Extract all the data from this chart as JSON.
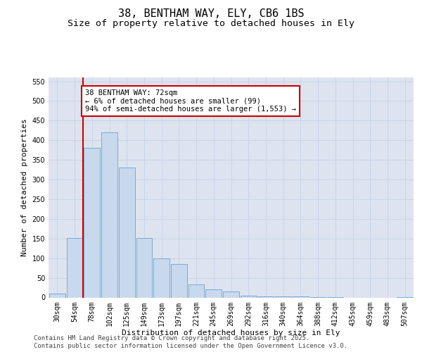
{
  "title1": "38, BENTHAM WAY, ELY, CB6 1BS",
  "title2": "Size of property relative to detached houses in Ely",
  "xlabel": "Distribution of detached houses by size in Ely",
  "ylabel": "Number of detached properties",
  "bar_labels": [
    "30sqm",
    "54sqm",
    "78sqm",
    "102sqm",
    "125sqm",
    "149sqm",
    "173sqm",
    "197sqm",
    "221sqm",
    "245sqm",
    "269sqm",
    "292sqm",
    "316sqm",
    "340sqm",
    "364sqm",
    "388sqm",
    "412sqm",
    "435sqm",
    "459sqm",
    "483sqm",
    "507sqm"
  ],
  "bar_values": [
    10,
    152,
    380,
    420,
    330,
    152,
    100,
    85,
    33,
    20,
    15,
    5,
    3,
    2,
    2,
    1,
    1,
    0,
    0,
    0,
    1
  ],
  "bar_color": "#c8d9ee",
  "bar_edge_color": "#7aaad0",
  "vline_x": 1.5,
  "vline_color": "#cc0000",
  "annotation_text": "38 BENTHAM WAY: 72sqm\n← 6% of detached houses are smaller (99)\n94% of semi-detached houses are larger (1,553) →",
  "annotation_box_color": "#ffffff",
  "annotation_box_edge": "#cc0000",
  "ylim": [
    0,
    560
  ],
  "yticks": [
    0,
    50,
    100,
    150,
    200,
    250,
    300,
    350,
    400,
    450,
    500,
    550
  ],
  "grid_color": "#c8d4e8",
  "background_color": "#dde4f0",
  "fig_background": "#ffffff",
  "footer1": "Contains HM Land Registry data © Crown copyright and database right 2025.",
  "footer2": "Contains public sector information licensed under the Open Government Licence v3.0.",
  "title_fontsize": 11,
  "subtitle_fontsize": 9.5,
  "axis_fontsize": 8,
  "tick_fontsize": 7,
  "annot_fontsize": 7.5,
  "footer_fontsize": 6.5
}
